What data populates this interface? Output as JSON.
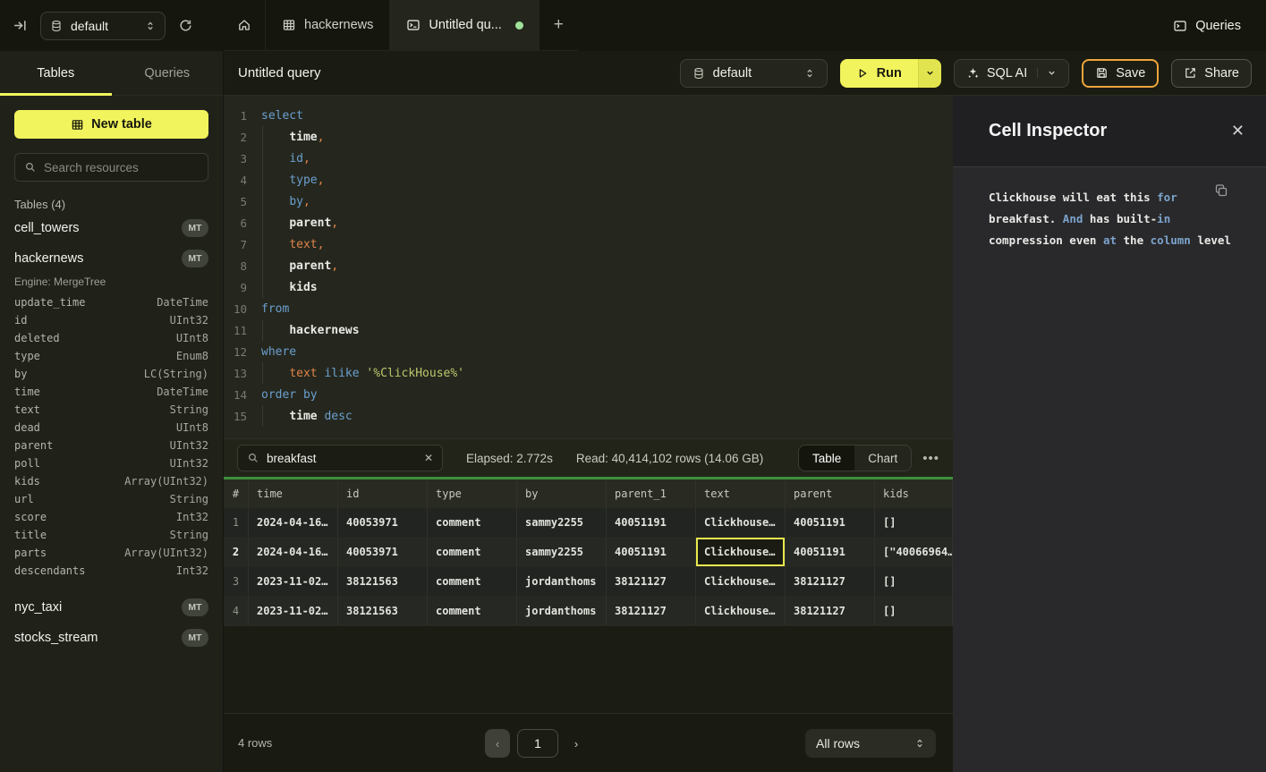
{
  "colors": {
    "yellow": "#f2f45d",
    "yellow-dk": "#e2e44f",
    "amber": "#eda53c",
    "green-line": "#3f8f3a",
    "dot-green": "#9fe29b",
    "sel-cell": "#e9e94f",
    "kw": "#6b9fce",
    "or": "#e08448",
    "st": "#bdc76c",
    "wh": "#e9e9e5",
    "insp-kw": "#7ba3cc"
  },
  "topbar": {
    "database_selector": {
      "label": "default"
    },
    "tabs": [
      {
        "icon": "home",
        "label": ""
      },
      {
        "icon": "table",
        "label": "hackernews"
      },
      {
        "icon": "terminal",
        "label": "Untitled qu...",
        "active": true,
        "dirty": true
      }
    ],
    "queries_label": "Queries"
  },
  "sidebar": {
    "tabs": [
      {
        "label": "Tables",
        "active": true
      },
      {
        "label": "Queries",
        "active": false
      }
    ],
    "new_table_label": "New table",
    "search_placeholder": "Search resources",
    "section_label": "Tables (4)",
    "tables": [
      {
        "name": "cell_towers",
        "badge": "MT"
      },
      {
        "name": "hackernews",
        "badge": "MT",
        "engine": "Engine: MergeTree",
        "columns": [
          {
            "name": "update_time",
            "type": "DateTime"
          },
          {
            "name": "id",
            "type": "UInt32"
          },
          {
            "name": "deleted",
            "type": "UInt8"
          },
          {
            "name": "type",
            "type": "Enum8"
          },
          {
            "name": "by",
            "type": "LC(String)"
          },
          {
            "name": "time",
            "type": "DateTime"
          },
          {
            "name": "text",
            "type": "String"
          },
          {
            "name": "dead",
            "type": "UInt8"
          },
          {
            "name": "parent",
            "type": "UInt32"
          },
          {
            "name": "poll",
            "type": "UInt32"
          },
          {
            "name": "kids",
            "type": "Array(UInt32)"
          },
          {
            "name": "url",
            "type": "String"
          },
          {
            "name": "score",
            "type": "Int32"
          },
          {
            "name": "title",
            "type": "String"
          },
          {
            "name": "parts",
            "type": "Array(UInt32)"
          },
          {
            "name": "descendants",
            "type": "Int32"
          }
        ]
      },
      {
        "name": "nyc_taxi",
        "badge": "MT"
      },
      {
        "name": "stocks_stream",
        "badge": "MT"
      }
    ]
  },
  "query_header": {
    "title": "Untitled query",
    "database": "default",
    "run_label": "Run",
    "sql_ai_label": "SQL AI",
    "save_label": "Save",
    "share_label": "Share"
  },
  "editor": {
    "lines": [
      {
        "n": "1",
        "ind": false,
        "seg": [
          [
            "select",
            "kw"
          ]
        ]
      },
      {
        "n": "2",
        "ind": true,
        "seg": [
          [
            "    ",
            ""
          ],
          [
            "time",
            "wh"
          ],
          [
            ",",
            "pu"
          ]
        ]
      },
      {
        "n": "3",
        "ind": true,
        "seg": [
          [
            "    ",
            ""
          ],
          [
            "id",
            "kw"
          ],
          [
            ",",
            "pu"
          ]
        ]
      },
      {
        "n": "4",
        "ind": true,
        "seg": [
          [
            "    ",
            ""
          ],
          [
            "type",
            "kw"
          ],
          [
            ",",
            "pu"
          ]
        ]
      },
      {
        "n": "5",
        "ind": true,
        "seg": [
          [
            "    ",
            ""
          ],
          [
            "by",
            "kw"
          ],
          [
            ",",
            "pu"
          ]
        ]
      },
      {
        "n": "6",
        "ind": true,
        "seg": [
          [
            "    ",
            ""
          ],
          [
            "parent",
            "wh"
          ],
          [
            ",",
            "pu"
          ]
        ]
      },
      {
        "n": "7",
        "ind": true,
        "seg": [
          [
            "    ",
            ""
          ],
          [
            "text",
            "or"
          ],
          [
            ",",
            "pu"
          ]
        ]
      },
      {
        "n": "8",
        "ind": true,
        "seg": [
          [
            "    ",
            ""
          ],
          [
            "parent",
            "wh"
          ],
          [
            ",",
            "pu"
          ]
        ]
      },
      {
        "n": "9",
        "ind": true,
        "seg": [
          [
            "    ",
            ""
          ],
          [
            "kids",
            "wh"
          ]
        ]
      },
      {
        "n": "10",
        "ind": false,
        "seg": [
          [
            "from",
            "kw"
          ]
        ]
      },
      {
        "n": "11",
        "ind": true,
        "seg": [
          [
            "    ",
            ""
          ],
          [
            "hackernews",
            "wh"
          ]
        ]
      },
      {
        "n": "12",
        "ind": false,
        "seg": [
          [
            "where",
            "kw"
          ]
        ]
      },
      {
        "n": "13",
        "ind": true,
        "seg": [
          [
            "    ",
            ""
          ],
          [
            "text",
            "or"
          ],
          [
            " ",
            ""
          ],
          [
            "ilike",
            "kw"
          ],
          [
            " ",
            ""
          ],
          [
            "'%ClickHouse%'",
            "st"
          ]
        ]
      },
      {
        "n": "14",
        "ind": false,
        "seg": [
          [
            "order by",
            "kw"
          ]
        ]
      },
      {
        "n": "15",
        "ind": true,
        "seg": [
          [
            "    ",
            ""
          ],
          [
            "time",
            "wh"
          ],
          [
            " ",
            ""
          ],
          [
            "desc",
            "kw"
          ]
        ]
      }
    ]
  },
  "results": {
    "search_value": "breakfast",
    "elapsed": "Elapsed: 2.772s",
    "read": "Read: 40,414,102 rows (14.06 GB)",
    "view_toggle": [
      {
        "label": "Table",
        "active": true
      },
      {
        "label": "Chart",
        "active": false
      }
    ],
    "columns": [
      "#",
      "time",
      "id",
      "type",
      "by",
      "parent_1",
      "text",
      "parent",
      "kids"
    ],
    "rows": [
      {
        "num": "1",
        "cells": [
          "2024-04-16…",
          "40053971",
          "comment",
          "sammy2255",
          "40051191",
          "Clickhouse…",
          "40051191",
          "[]"
        ]
      },
      {
        "num": "2",
        "selected_cell": 5,
        "cells": [
          "2024-04-16…",
          "40053971",
          "comment",
          "sammy2255",
          "40051191",
          "Clickhouse…",
          "40051191",
          "[\"40066964…"
        ]
      },
      {
        "num": "3",
        "cells": [
          "2023-11-02…",
          "38121563",
          "comment",
          "jordanthoms",
          "38121127",
          "Clickhouse…",
          "38121127",
          "[]"
        ]
      },
      {
        "num": "4",
        "cells": [
          "2023-11-02…",
          "38121563",
          "comment",
          "jordanthoms",
          "38121127",
          "Clickhouse…",
          "38121127",
          "[]"
        ]
      }
    ]
  },
  "inspector": {
    "title": "Cell Inspector",
    "lines": [
      [
        [
          "Clickhouse will eat this ",
          ""
        ],
        [
          "for",
          "k"
        ]
      ],
      [
        [
          "breakfast. ",
          ""
        ],
        [
          "And",
          "k"
        ],
        [
          " has built-",
          ""
        ],
        [
          "in",
          "k"
        ]
      ],
      [
        [
          "compression even ",
          ""
        ],
        [
          "at",
          "k"
        ],
        [
          " the ",
          ""
        ],
        [
          "column",
          "k"
        ],
        [
          " level",
          ""
        ]
      ]
    ]
  },
  "footer": {
    "row_count": "4 rows",
    "page": "1",
    "prev_label": "‹",
    "next_label": "›",
    "page_size": "All rows"
  }
}
